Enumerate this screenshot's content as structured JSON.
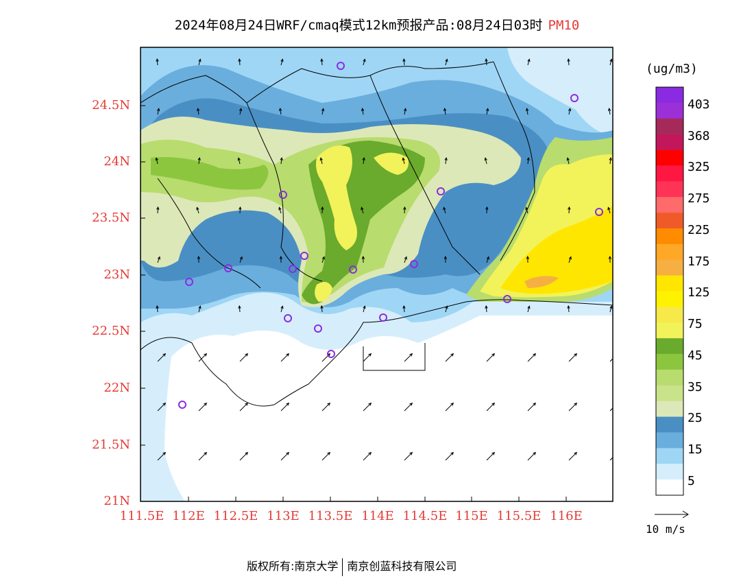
{
  "title": {
    "main": "2024年08月24日WRF/cmaq模式12km预报产品:08月24日03时",
    "species": "PM10"
  },
  "axes": {
    "lat_labels": [
      "24.5N",
      "24N",
      "23.5N",
      "23N",
      "22.5N",
      "22N",
      "21.5N",
      "21N"
    ],
    "lon_labels": [
      "111.5E",
      "112E",
      "112.5E",
      "113E",
      "113.5E",
      "114E",
      "114.5E",
      "115E",
      "115.5E",
      "116E"
    ]
  },
  "colorbar": {
    "units": "(ug/m3)",
    "labels": [
      "403",
      "368",
      "325",
      "275",
      "225",
      "175",
      "125",
      "75",
      "45",
      "35",
      "25",
      "15",
      "5"
    ],
    "colors": [
      "#8a2be2",
      "#9b30d9",
      "#a52a5a",
      "#c2185b",
      "#ff0000",
      "#ff1744",
      "#ff3355",
      "#ff6a6a",
      "#f05a28",
      "#ff8c00",
      "#ffa726",
      "#f5b041",
      "#ffe600",
      "#fff200",
      "#f7e94a",
      "#f2f25a",
      "#6aaa2d",
      "#8cc63f",
      "#b8dc6e",
      "#c9e38a",
      "#dde8b8",
      "#4a8fc4",
      "#6aaedd",
      "#9fd6f5",
      "#d6eefb",
      "#ffffff"
    ]
  },
  "wind_reference": "10 m/s",
  "footer": {
    "left": "版权所有:南京大学",
    "right": "南京创蓝科技有限公司"
  },
  "colors": {
    "label_red": "#e53935",
    "purple_marker": "#8b2be2"
  }
}
